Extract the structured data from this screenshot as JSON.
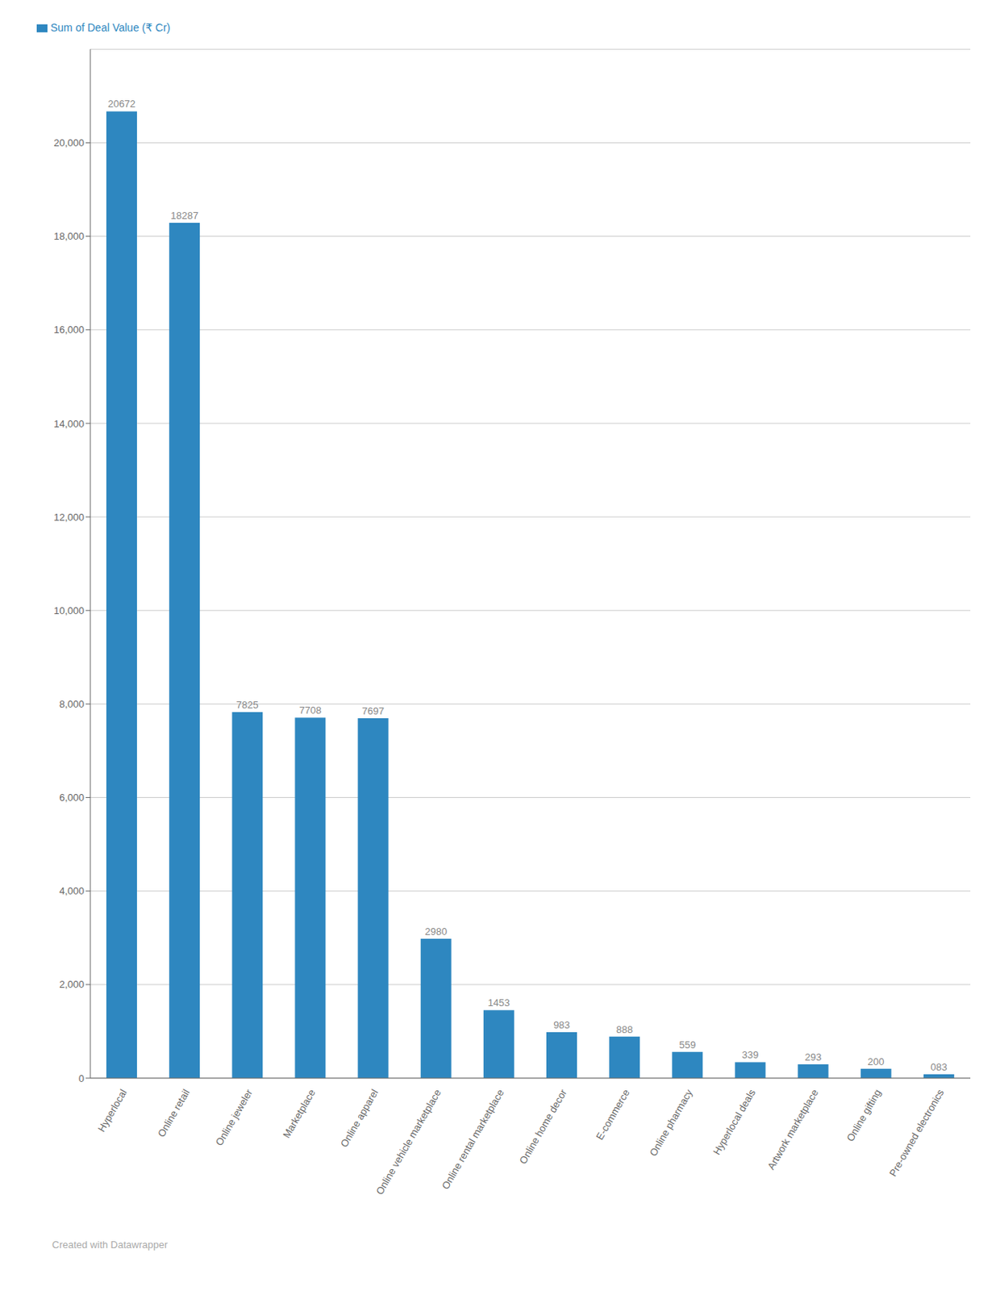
{
  "chart_data": {
    "type": "bar",
    "categories": [
      "Hyperlocal",
      "Online retail",
      "Online jeweler",
      "Marketplace",
      "Online apparel",
      "Online vehicle marketplace",
      "Online rental marketplace",
      "Online home decor",
      "E-commerce",
      "Online pharmacy",
      "Hyperlocal deals",
      "Artwork marketplace",
      "Online gifting",
      "Pre-owned electronics"
    ],
    "series": [
      {
        "name": "Sum of Deal Value (₹ Cr)",
        "color": "#2e87c0",
        "values": [
          20672,
          18287,
          7825,
          7708,
          7697,
          2980,
          1453,
          983,
          888,
          559,
          339,
          293,
          200,
          83
        ],
        "value_labels": [
          "20672",
          "18287",
          "7825",
          "7708",
          "7697",
          "2980",
          "1453",
          "983",
          "888",
          "559",
          "339",
          "293",
          "200",
          "083"
        ]
      }
    ],
    "ylim": [
      0,
      22000
    ],
    "yticks": [
      0,
      {
        "value": 2000,
        "label": "2,000"
      },
      {
        "value": 4000,
        "label": "4,000"
      },
      {
        "value": 6000,
        "label": "6,000"
      },
      {
        "value": 8000,
        "label": "8,000"
      },
      {
        "value": 10000,
        "label": "10,000"
      },
      {
        "value": 12000,
        "label": "12,000"
      },
      {
        "value": 14000,
        "label": "14,000"
      },
      {
        "value": 16000,
        "label": "16,000"
      },
      {
        "value": 18000,
        "label": "18,000"
      },
      {
        "value": 20000,
        "label": "20,000"
      }
    ],
    "grid": true,
    "legend": "upper left",
    "data_labels": true,
    "annotations": [
      "Created with Datawrapper"
    ]
  }
}
